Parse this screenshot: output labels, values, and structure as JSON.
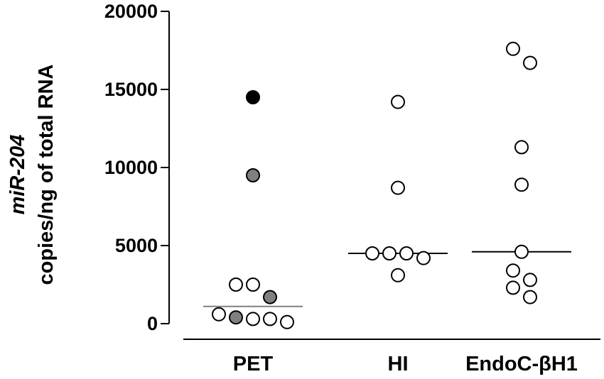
{
  "chart_data": {
    "type": "scatter",
    "ylabel_line1": "miR-204",
    "ylabel_line2": "copies/ng of total RNA",
    "ylim": [
      0,
      20000
    ],
    "yticks": [
      0,
      5000,
      10000,
      15000,
      20000
    ],
    "categories": [
      "PET",
      "HI",
      "EndoC-βH1"
    ],
    "points": [
      {
        "category": "PET",
        "y": 14500,
        "fill": "black"
      },
      {
        "category": "PET",
        "y": 9500,
        "fill": "gray"
      },
      {
        "category": "PET",
        "y": 2500,
        "fill": "white"
      },
      {
        "category": "PET",
        "y": 2500,
        "fill": "white"
      },
      {
        "category": "PET",
        "y": 1700,
        "fill": "gray"
      },
      {
        "category": "PET",
        "y": 600,
        "fill": "white"
      },
      {
        "category": "PET",
        "y": 400,
        "fill": "gray"
      },
      {
        "category": "PET",
        "y": 300,
        "fill": "white"
      },
      {
        "category": "PET",
        "y": 300,
        "fill": "white"
      },
      {
        "category": "PET",
        "y": 100,
        "fill": "white"
      },
      {
        "category": "HI",
        "y": 14200,
        "fill": "white"
      },
      {
        "category": "HI",
        "y": 8700,
        "fill": "white"
      },
      {
        "category": "HI",
        "y": 4500,
        "fill": "white"
      },
      {
        "category": "HI",
        "y": 4500,
        "fill": "white"
      },
      {
        "category": "HI",
        "y": 4500,
        "fill": "white"
      },
      {
        "category": "HI",
        "y": 4200,
        "fill": "white"
      },
      {
        "category": "HI",
        "y": 3100,
        "fill": "white"
      },
      {
        "category": "EndoC-βH1",
        "y": 17600,
        "fill": "white"
      },
      {
        "category": "EndoC-βH1",
        "y": 16700,
        "fill": "white"
      },
      {
        "category": "EndoC-βH1",
        "y": 11300,
        "fill": "white"
      },
      {
        "category": "EndoC-βH1",
        "y": 8900,
        "fill": "white"
      },
      {
        "category": "EndoC-βH1",
        "y": 4600,
        "fill": "white"
      },
      {
        "category": "EndoC-βH1",
        "y": 3400,
        "fill": "white"
      },
      {
        "category": "EndoC-βH1",
        "y": 2800,
        "fill": "white"
      },
      {
        "category": "EndoC-βH1",
        "y": 2300,
        "fill": "white"
      },
      {
        "category": "EndoC-βH1",
        "y": 1700,
        "fill": "white"
      }
    ],
    "medians": [
      {
        "category": "PET",
        "y": 1100,
        "color": "gray"
      },
      {
        "category": "HI",
        "y": 4500,
        "color": "black"
      },
      {
        "category": "EndoC-βH1",
        "y": 4600,
        "color": "black"
      }
    ],
    "grid": false,
    "legend": "none"
  }
}
